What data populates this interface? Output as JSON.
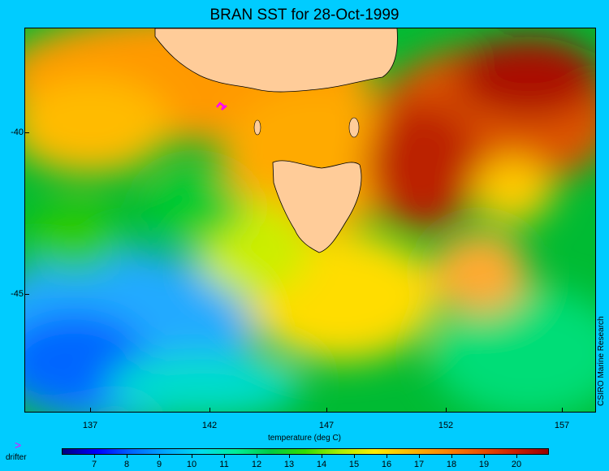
{
  "title": "BRAN SST for 28-Oct-1999",
  "map": {
    "lon_range": [
      134.0,
      158.0
    ],
    "lat_range": [
      -48.7,
      -37.0
    ],
    "lon_ticks": [
      "137",
      "142",
      "147",
      "152",
      "157"
    ],
    "lat_ticks": [
      "-40",
      "-45"
    ],
    "xlabel": "temperature (deg C)",
    "credit": "CSIRO Marine Research",
    "land_color": "#ffcc99",
    "frame_color": "#000000"
  },
  "legend": {
    "drifter_symbol": ">",
    "drifter_label": "drifter",
    "drifter_color": "#ff00ff"
  },
  "colorbar": {
    "min": 6,
    "max": 21,
    "ticks": [
      "7",
      "8",
      "9",
      "10",
      "11",
      "12",
      "13",
      "14",
      "15",
      "16",
      "17",
      "18",
      "19",
      "20"
    ],
    "colors": [
      "#000080",
      "#0000ff",
      "#0066ff",
      "#00aaff",
      "#00ddee",
      "#00ee99",
      "#00cc44",
      "#33dd00",
      "#aaee00",
      "#ffee00",
      "#ffbb00",
      "#ff8800",
      "#ee5500",
      "#cc2200",
      "#990000"
    ]
  }
}
